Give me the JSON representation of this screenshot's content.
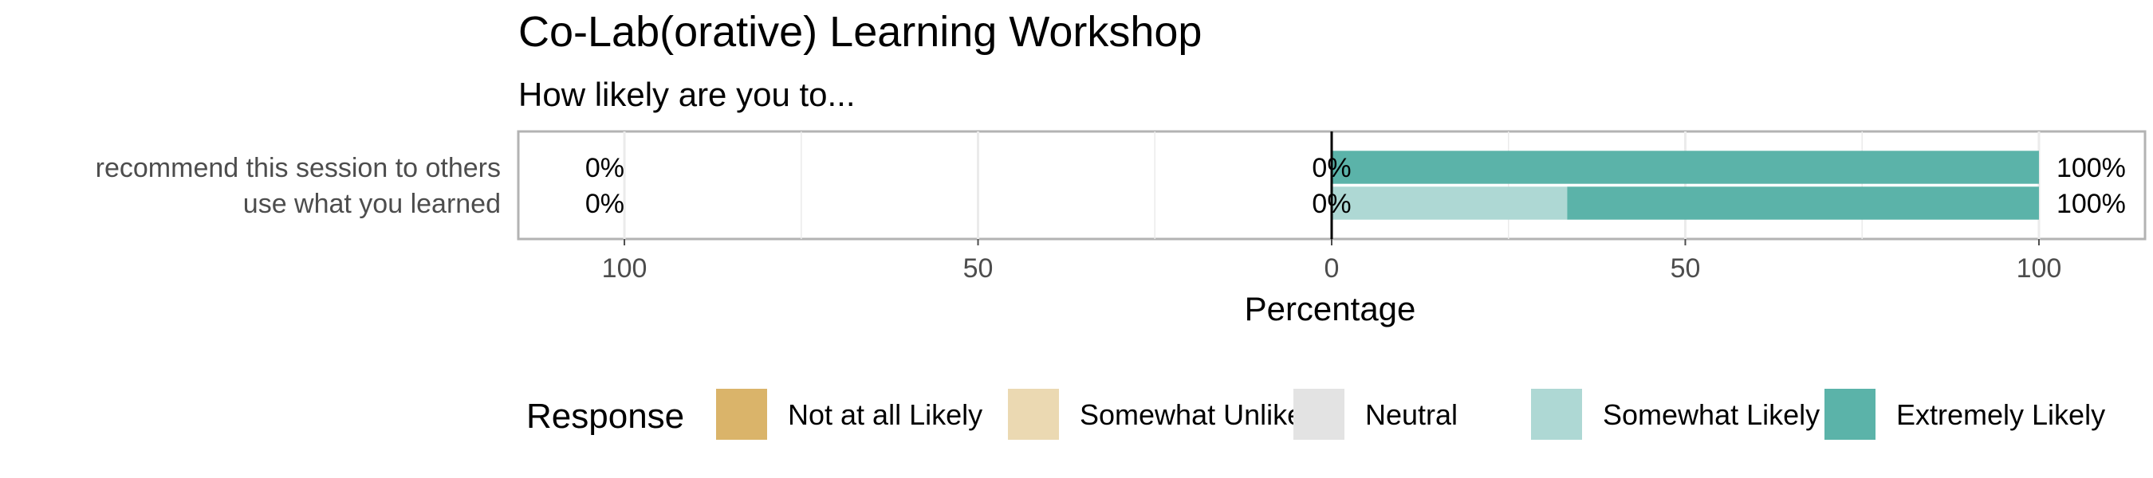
{
  "chart_data": {
    "type": "bar",
    "orientation": "horizontal",
    "stacked": "diverging",
    "title": "Co-Lab(orative) Learning Workshop",
    "subtitle": "How likely are you to...",
    "xlabel": "Percentage",
    "ylabel": "",
    "xlim": [
      -115,
      115
    ],
    "x_ticks": [
      -100,
      -50,
      0,
      50,
      100
    ],
    "x_tick_labels": [
      "100",
      "50",
      "0",
      "50",
      "100"
    ],
    "grid": true,
    "categories": [
      "recommend this session to others",
      "use what you learned"
    ],
    "series": [
      {
        "name": "Not at all Likely",
        "values": [
          0,
          0
        ],
        "color": "#DAB46A"
      },
      {
        "name": "Somewhat Unlikely",
        "values": [
          0,
          0
        ],
        "color": "#EBD9B2"
      },
      {
        "name": "Neutral",
        "values": [
          0,
          0
        ],
        "color": "#E3E3E3"
      },
      {
        "name": "Somewhat Likely",
        "values": [
          0,
          33.3
        ],
        "color": "#AED8D4"
      },
      {
        "name": "Extremely Likely",
        "values": [
          100,
          66.7
        ],
        "color": "#5BB3A9"
      }
    ],
    "summary_labels": {
      "left": [
        "0%",
        "0%"
      ],
      "center": [
        "0%",
        "0%"
      ],
      "right": [
        "100%",
        "100%"
      ]
    },
    "legend": {
      "title": "Response",
      "position": "bottom",
      "items": [
        "Not at all Likely",
        "Somewhat Unlikely",
        "Neutral",
        "Somewhat Likely",
        "Extremely Likely"
      ]
    }
  }
}
